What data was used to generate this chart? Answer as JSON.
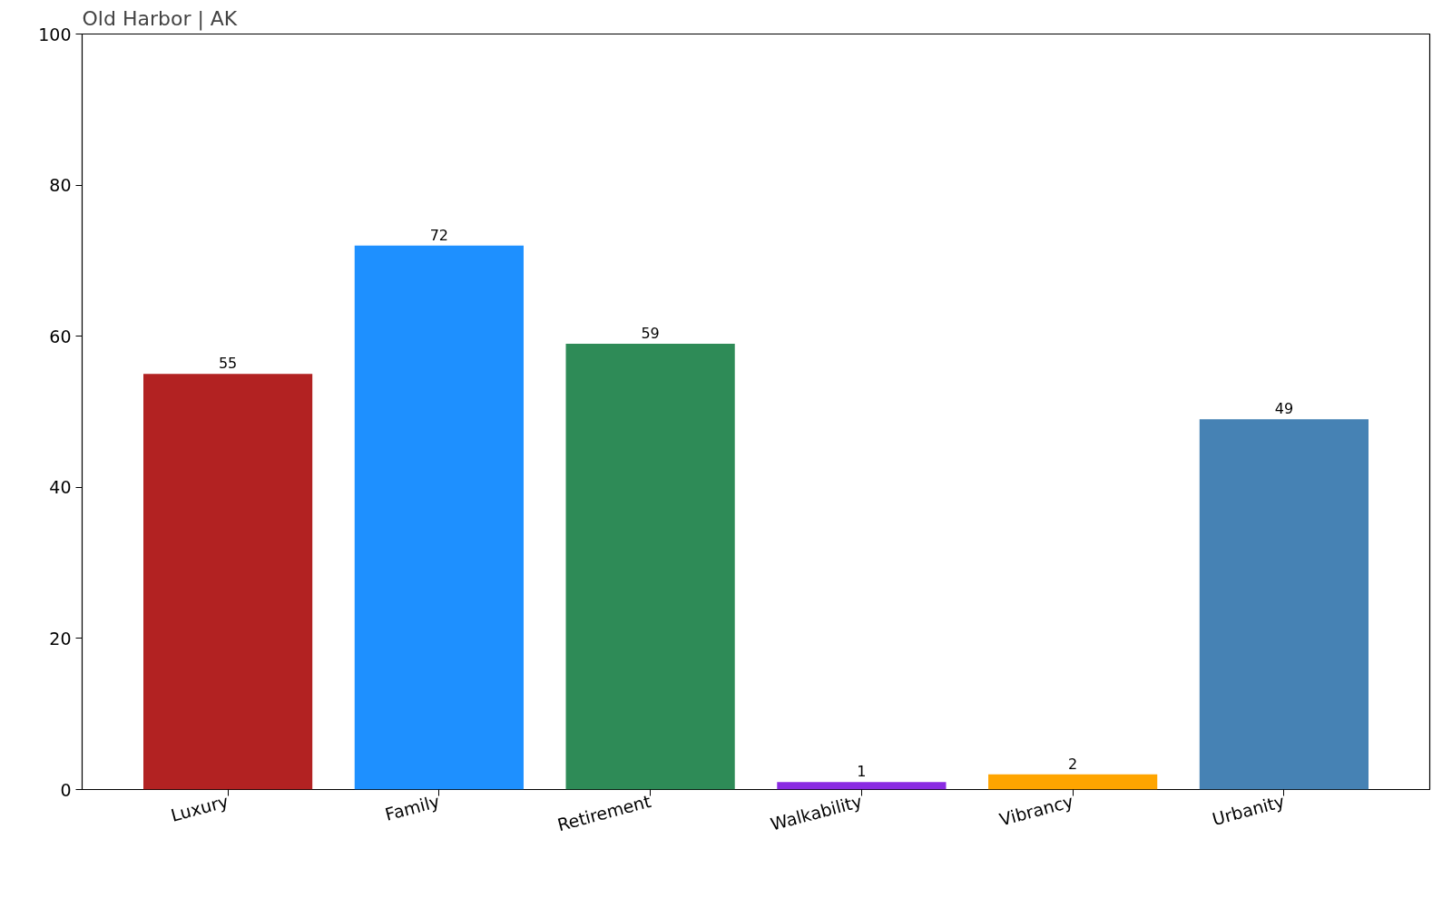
{
  "chart_data": {
    "type": "bar",
    "title": "Old Harbor | AK",
    "categories": [
      "Luxury",
      "Family",
      "Retirement",
      "Walkability",
      "Vibrancy",
      "Urbanity"
    ],
    "values": [
      55,
      72,
      59,
      1,
      2,
      49
    ],
    "colors": [
      "#b22222",
      "#1e90ff",
      "#2e8b57",
      "#8a2be2",
      "#ffa500",
      "#4682b4"
    ],
    "ylim": [
      0,
      100
    ],
    "yticks": [
      0,
      20,
      40,
      60,
      80,
      100
    ],
    "grid": false,
    "data_labels": true
  }
}
